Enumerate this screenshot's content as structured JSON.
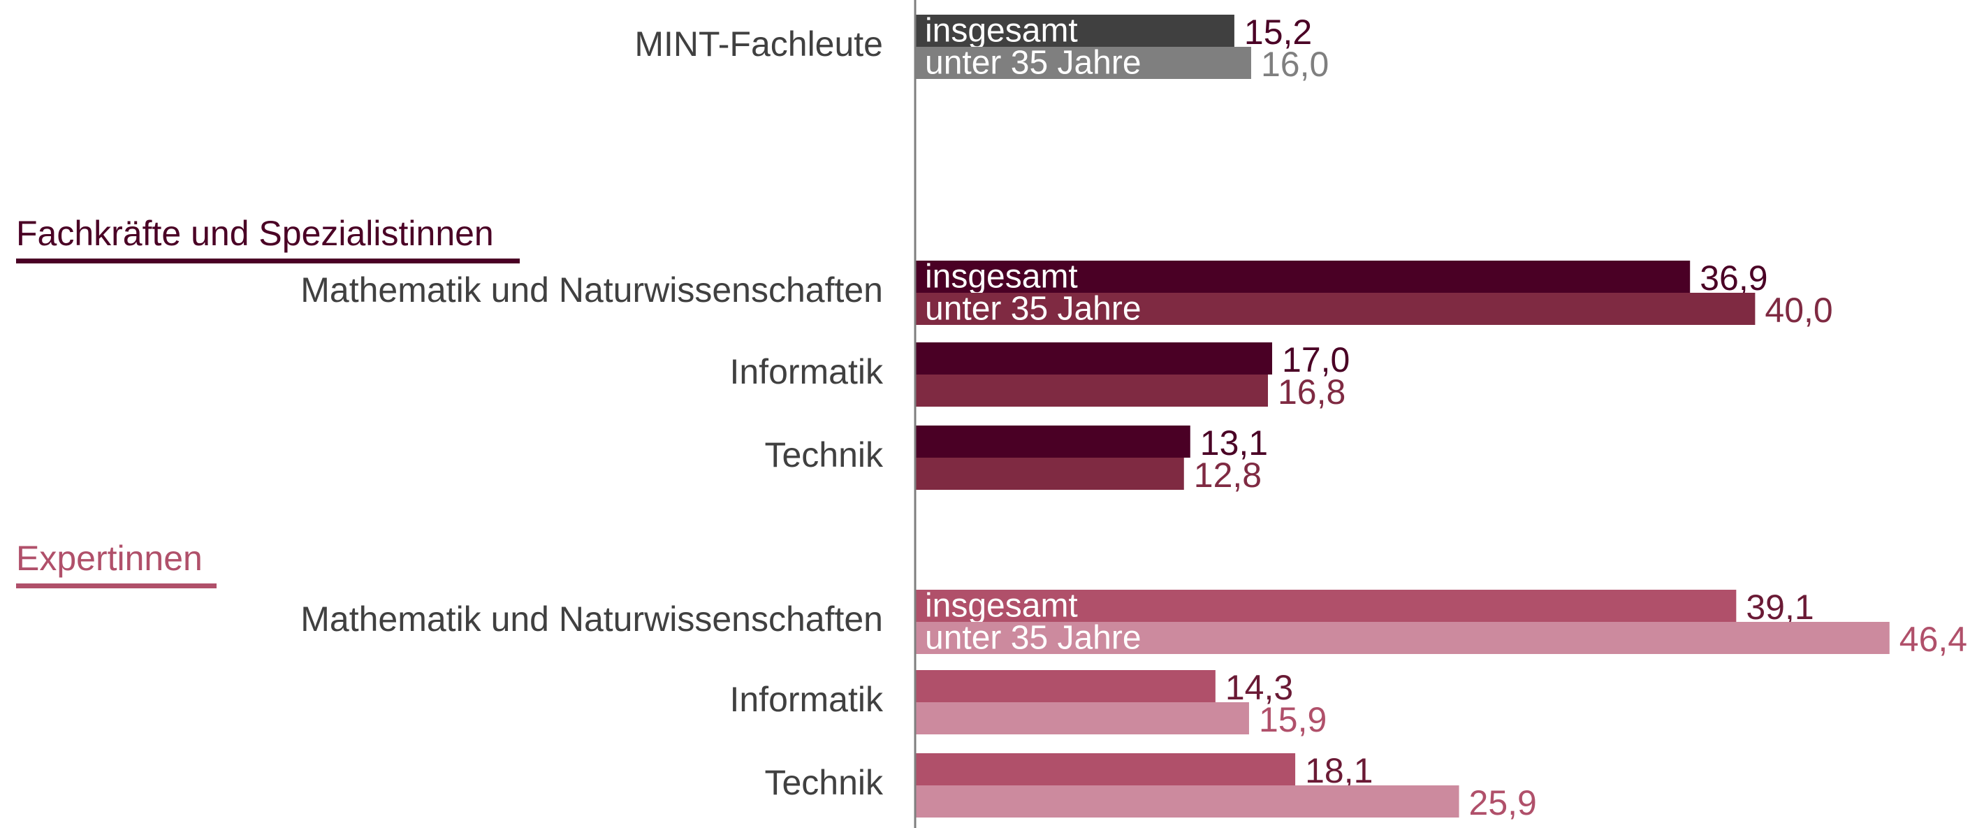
{
  "chart_data": {
    "type": "bar",
    "orientation": "horizontal",
    "xlim": [
      0,
      50
    ],
    "groups": [
      {
        "categories": [
          "MINT-Fachleute"
        ],
        "series": [
          {
            "name": "insgesamt",
            "color": "#404040",
            "label_color": "#4a0025",
            "values": [
              15.2
            ],
            "value_labels": [
              "15,2"
            ]
          },
          {
            "name": "unter 35 Jahre",
            "color": "#7f7f7f",
            "label_color": "#7f7f7f",
            "values": [
              16.0
            ],
            "value_labels": [
              "16,0"
            ]
          }
        ]
      },
      {
        "title": "Fachkräfte und Spezialistinnen",
        "title_color": "#4a0025",
        "categories": [
          "Mathematik und Naturwissenschaften",
          "Informatik",
          "Technik"
        ],
        "series": [
          {
            "name": "insgesamt",
            "color": "#4a0025",
            "label_color": "#4a0025",
            "values": [
              36.9,
              17.0,
              13.1
            ],
            "value_labels": [
              "36,9",
              "17,0",
              "13,1"
            ]
          },
          {
            "name": "unter 35 Jahre",
            "color": "#7f2a42",
            "label_color": "#7f2a42",
            "values": [
              40.0,
              16.8,
              12.8
            ],
            "value_labels": [
              "40,0",
              "16,8",
              "12,8"
            ]
          }
        ]
      },
      {
        "title": "Expertinnen",
        "title_color": "#b0506a",
        "categories": [
          "Mathematik und Naturwissenschaften",
          "Informatik",
          "Technik"
        ],
        "series": [
          {
            "name": "insgesamt",
            "color": "#b0506a",
            "label_color": "#6a1a35",
            "values": [
              39.1,
              14.3,
              18.1
            ],
            "value_labels": [
              "39,1",
              "14,3",
              "18,1"
            ]
          },
          {
            "name": "unter 35 Jahre",
            "color": "#cc8a9e",
            "label_color": "#b0506a",
            "values": [
              46.4,
              15.9,
              25.9
            ],
            "value_labels": [
              "46,4",
              "15,9",
              "25,9"
            ]
          }
        ]
      }
    ]
  }
}
